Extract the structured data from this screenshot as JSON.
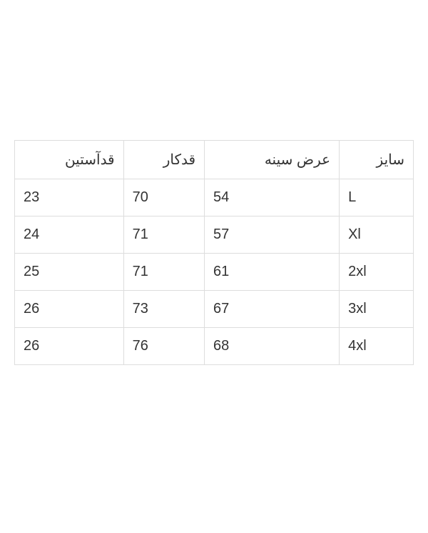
{
  "table": {
    "type": "table",
    "columns": [
      "قدآستین",
      "قدکار",
      "عرض سینه",
      "سایز"
    ],
    "rows": [
      [
        "23",
        "70",
        "54",
        "L"
      ],
      [
        "24",
        "71",
        "57",
        "Xl"
      ],
      [
        "25",
        "71",
        "61",
        "2xl"
      ],
      [
        "26",
        "73",
        "67",
        "3xl"
      ],
      [
        "26",
        "76",
        "68",
        "4xl"
      ]
    ],
    "border_color": "#dddddd",
    "background_color": "#ffffff",
    "text_color": "#333333",
    "header_fontsize": 20,
    "cell_fontsize": 20,
    "header_align": "right",
    "cell_align": "left"
  }
}
